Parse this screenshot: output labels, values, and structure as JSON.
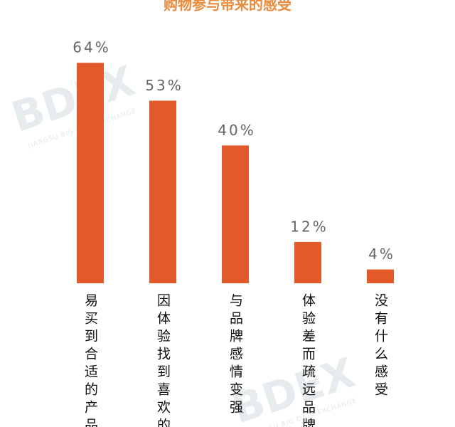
{
  "chart_data": {
    "type": "bar",
    "title": "购物参与带来的感受",
    "categories": [
      "易买到合适的产品",
      "因体验找到喜欢的",
      "与品牌感情变强",
      "体验差而疏远品牌",
      "没有什么感受"
    ],
    "values": [
      64,
      53,
      40,
      12,
      4
    ],
    "value_labels": [
      "64%",
      "53%",
      "40%",
      "12%",
      "4%"
    ],
    "color": "#e35a2a",
    "watermark": "BDEX",
    "watermark_sub": "JIANGSU BIG DATA EXCHANGE"
  }
}
